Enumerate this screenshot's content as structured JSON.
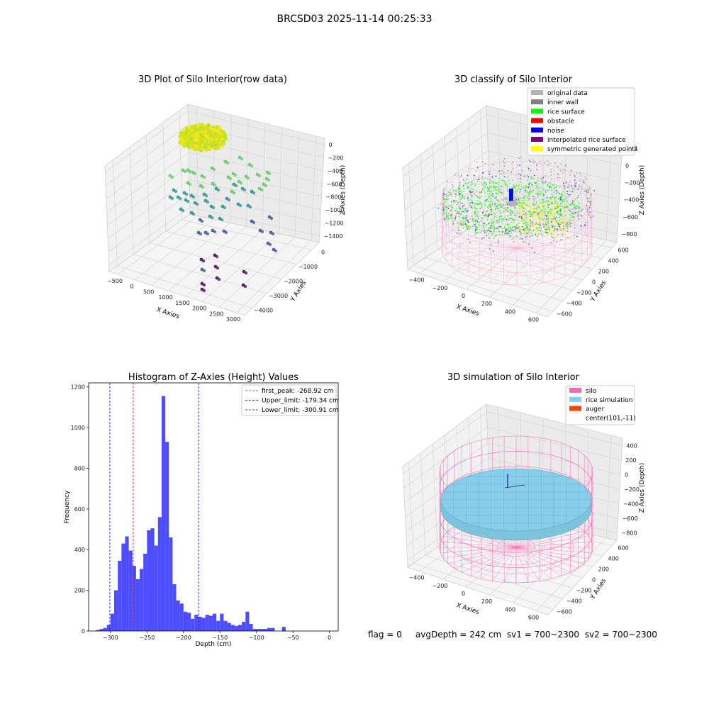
{
  "figure": {
    "suptitle": "BRCSD03 2025-11-14 00:25:33"
  },
  "status_bar": {
    "flag": "flag = 0",
    "avg_depth": "avgDepth = 242 cm",
    "sv1": "sv1 = 700~2300",
    "sv2": "sv2 = 700~2300"
  },
  "chart_data": [
    {
      "type": "scatter",
      "title": "3D Plot of Silo Interior(row data)",
      "xlabel": "X Axies",
      "ylabel": "Y Axies",
      "zlabel": "Z Axies (Depth)",
      "x_ticks": [
        "−500",
        "0",
        "500",
        "1000",
        "1500",
        "2000",
        "2500",
        "3000"
      ],
      "y_ticks": [
        "0",
        "−1000",
        "−2000",
        "−3000",
        "−4000"
      ],
      "z_ticks": [
        "0",
        "−200",
        "−400",
        "−600",
        "−800",
        "−1000",
        "−1200",
        "−1400"
      ],
      "colormap": [
        "#440154",
        "#3b528b",
        "#21918c",
        "#5ec962",
        "#fde725"
      ]
    },
    {
      "type": "scatter",
      "title": "3D classify of Silo Interior",
      "xlabel": "X Axies",
      "ylabel": "Y Axies",
      "zlabel": "Z Axies (Depth)",
      "x_ticks": [
        "−400",
        "−200",
        "0",
        "200",
        "400",
        "600"
      ],
      "y_ticks": [
        "600",
        "400",
        "200",
        "0",
        "−200",
        "−400",
        "−600"
      ],
      "z_ticks": [
        "200",
        "0",
        "−200",
        "−400",
        "−600",
        "−800"
      ],
      "z_top_tick": "200",
      "legend": [
        {
          "label": "original data",
          "color": "#b3b3b3"
        },
        {
          "label": "inner wall",
          "color": "#808080"
        },
        {
          "label": "rice surface",
          "color": "#00ff00"
        },
        {
          "label": "obstacle",
          "color": "#ff0000"
        },
        {
          "label": "noise",
          "color": "#0000ff"
        },
        {
          "label": "interpolated rice surface",
          "color": "#800080"
        },
        {
          "label": "symmetric generated points",
          "color": "#ffff00"
        }
      ],
      "wire_color": "#ffb6d9"
    },
    {
      "type": "bar",
      "title": "Histogram of Z-Axies (Height) Values",
      "xlabel": "Depth (cm)",
      "ylabel": "Frequency",
      "xlim": [
        -330,
        12
      ],
      "ylim": [
        0,
        1220
      ],
      "bin_width": 5,
      "x_ticks": [
        -300,
        -250,
        -200,
        -150,
        -100,
        -50,
        0
      ],
      "x_tick_labels": [
        "−300",
        "−250",
        "−200",
        "−150",
        "−100",
        "−50",
        "0"
      ],
      "y_ticks": [
        0,
        200,
        400,
        600,
        800,
        1000,
        1200
      ],
      "y_tick_labels": [
        "0",
        "200",
        "400",
        "600",
        "800",
        "1000",
        "1200"
      ],
      "bar_color": "#4d4dff",
      "bins": [
        {
          "x": -320,
          "v": 5
        },
        {
          "x": -315,
          "v": 10
        },
        {
          "x": -310,
          "v": 15
        },
        {
          "x": -305,
          "v": 30
        },
        {
          "x": -300,
          "v": 85
        },
        {
          "x": -295,
          "v": 200
        },
        {
          "x": -290,
          "v": 345
        },
        {
          "x": -285,
          "v": 430
        },
        {
          "x": -280,
          "v": 465
        },
        {
          "x": -275,
          "v": 395
        },
        {
          "x": -270,
          "v": 320
        },
        {
          "x": -265,
          "v": 255
        },
        {
          "x": -260,
          "v": 305
        },
        {
          "x": -255,
          "v": 380
        },
        {
          "x": -250,
          "v": 495
        },
        {
          "x": -245,
          "v": 505
        },
        {
          "x": -240,
          "v": 420
        },
        {
          "x": -235,
          "v": 560
        },
        {
          "x": -230,
          "v": 1155
        },
        {
          "x": -225,
          "v": 930
        },
        {
          "x": -220,
          "v": 460
        },
        {
          "x": -215,
          "v": 230
        },
        {
          "x": -210,
          "v": 150
        },
        {
          "x": -205,
          "v": 135
        },
        {
          "x": -200,
          "v": 95
        },
        {
          "x": -195,
          "v": 90
        },
        {
          "x": -190,
          "v": 60
        },
        {
          "x": -185,
          "v": 80
        },
        {
          "x": -180,
          "v": 70
        },
        {
          "x": -175,
          "v": 65
        },
        {
          "x": -170,
          "v": 80
        },
        {
          "x": -165,
          "v": 75
        },
        {
          "x": -160,
          "v": 85
        },
        {
          "x": -155,
          "v": 50
        },
        {
          "x": -150,
          "v": 85
        },
        {
          "x": -145,
          "v": 50
        },
        {
          "x": -140,
          "v": 40
        },
        {
          "x": -135,
          "v": 30
        },
        {
          "x": -130,
          "v": 25
        },
        {
          "x": -125,
          "v": 30
        },
        {
          "x": -120,
          "v": 45
        },
        {
          "x": -115,
          "v": 95
        },
        {
          "x": -110,
          "v": 35
        },
        {
          "x": -105,
          "v": 10
        },
        {
          "x": -100,
          "v": 10
        },
        {
          "x": -95,
          "v": 10
        },
        {
          "x": -90,
          "v": 10
        },
        {
          "x": -85,
          "v": 15
        },
        {
          "x": -80,
          "v": 15
        },
        {
          "x": -75,
          "v": 0
        },
        {
          "x": -70,
          "v": 0
        },
        {
          "x": -65,
          "v": 20
        }
      ],
      "vlines": [
        {
          "x": -268.92,
          "color": "#ff0000",
          "label": "first_peak: -268.92 cm"
        },
        {
          "x": -179.34,
          "color": "#0000ff",
          "label": "Upper_limit: -179.34 cm"
        },
        {
          "x": -300.91,
          "color": "#0000ff",
          "label": "Lower_limit: -300.91 cm"
        }
      ],
      "legend_position": "upper right"
    },
    {
      "type": "scatter",
      "title": "3D simulation of Silo Interior",
      "xlabel": "X Axies",
      "ylabel": "Y Axies",
      "zlabel": "Z Axies (Depth)",
      "x_ticks": [
        "−400",
        "−200",
        "0",
        "200",
        "400",
        "600"
      ],
      "y_ticks": [
        "600",
        "400",
        "200",
        "0",
        "−200",
        "−400",
        "−600"
      ],
      "z_ticks": [
        "400",
        "200",
        "0",
        "−200",
        "−400",
        "−600",
        "−800"
      ],
      "legend": [
        {
          "label": "silo",
          "color": "#ff69b4"
        },
        {
          "label": "rice simulation",
          "color": "#87ceeb"
        },
        {
          "label": "auger",
          "color": "#ff4500"
        },
        {
          "label": "center(101,-11)",
          "color": ""
        }
      ],
      "wire_color": "#ff69b4",
      "surface_color": "#87ceeb"
    }
  ]
}
